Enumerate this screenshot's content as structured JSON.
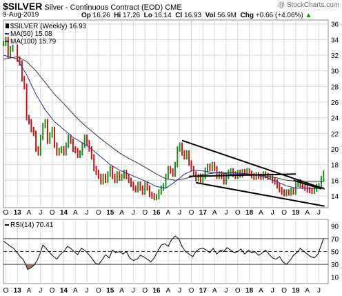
{
  "header": {
    "ticker": "$SILVER",
    "title_rest": "Silver - Continuous Contract (EOD)",
    "exchange": "CME",
    "brand": "@ StockCharts.com",
    "date": "9-Aug-2019",
    "op_label": "Op",
    "op_value": "16.26",
    "hi_label": "Hi",
    "hi_value": "17.26",
    "lo_label": "Lo",
    "lo_value": "16.14",
    "cl_label": "Cl",
    "cl_value": "16.93",
    "vol_label": "Vol",
    "vol_value": "56.9M",
    "chg_label": "Chg",
    "chg_value": "+0.66 (+4.06%)",
    "chg_arrow": "▲"
  },
  "colors": {
    "price_up": "#1a8c1a",
    "price_down": "#cc1111",
    "ma50": "#2b2b8c",
    "ma100": "#333333",
    "trendline": "#000000",
    "rsi_line": "#000000",
    "rsi_oversold_fill": "#b07070",
    "grid": "#d8d8d8"
  },
  "chart_data": [
    {
      "type": "line",
      "name": "price",
      "legend": [
        {
          "label": "$SILVER (Weekly) 16.93",
          "key": "price"
        },
        {
          "label": "MA(50) 15.08",
          "key": "ma50"
        },
        {
          "label": "MA(100) 15.79",
          "key": "ma100"
        }
      ],
      "y_ticks": [
        14,
        16,
        18,
        20,
        22,
        24,
        26,
        28,
        30,
        32,
        34,
        36
      ],
      "ylim": [
        12.5,
        36.5
      ],
      "x_labels": [
        "O",
        "13",
        "A",
        "J",
        "O",
        "14",
        "A",
        "J",
        "O",
        "15",
        "A",
        "J",
        "O",
        "16",
        "A",
        "J",
        "O",
        "17",
        "A",
        "J",
        "O",
        "18",
        "A",
        "J",
        "O",
        "19",
        "A",
        "J"
      ],
      "year_labels": [
        "13",
        "14",
        "15",
        "16",
        "17",
        "18",
        "19"
      ],
      "x_range": [
        2012.7,
        2019.7
      ],
      "price_series": {
        "x": [
          2012.7,
          2012.75,
          2012.8,
          2012.85,
          2012.9,
          2013.0,
          2013.05,
          2013.1,
          2013.15,
          2013.2,
          2013.25,
          2013.3,
          2013.35,
          2013.4,
          2013.45,
          2013.5,
          2013.55,
          2013.6,
          2013.65,
          2013.7,
          2013.75,
          2013.8,
          2013.85,
          2013.9,
          2013.95,
          2014.0,
          2014.05,
          2014.1,
          2014.15,
          2014.2,
          2014.25,
          2014.3,
          2014.35,
          2014.4,
          2014.45,
          2014.5,
          2014.55,
          2014.6,
          2014.65,
          2014.7,
          2014.75,
          2014.8,
          2014.85,
          2014.9,
          2014.95,
          2015.0,
          2015.05,
          2015.1,
          2015.15,
          2015.2,
          2015.25,
          2015.3,
          2015.35,
          2015.4,
          2015.45,
          2015.5,
          2015.55,
          2015.6,
          2015.65,
          2015.7,
          2015.75,
          2015.8,
          2015.85,
          2015.9,
          2015.95,
          2016.0,
          2016.05,
          2016.1,
          2016.15,
          2016.2,
          2016.25,
          2016.3,
          2016.35,
          2016.4,
          2016.45,
          2016.5,
          2016.55,
          2016.6,
          2016.65,
          2016.7,
          2016.75,
          2016.8,
          2016.85,
          2016.9,
          2016.95,
          2017.0,
          2017.05,
          2017.1,
          2017.15,
          2017.2,
          2017.25,
          2017.3,
          2017.35,
          2017.4,
          2017.45,
          2017.5,
          2017.55,
          2017.6,
          2017.65,
          2017.7,
          2017.75,
          2017.8,
          2017.85,
          2017.9,
          2017.95,
          2018.0,
          2018.05,
          2018.1,
          2018.15,
          2018.2,
          2018.25,
          2018.3,
          2018.35,
          2018.4,
          2018.45,
          2018.5,
          2018.55,
          2018.6,
          2018.65,
          2018.7,
          2018.75,
          2018.8,
          2018.85,
          2018.9,
          2018.95,
          2019.0,
          2019.05,
          2019.1,
          2019.15,
          2019.2,
          2019.25,
          2019.3,
          2019.35,
          2019.4,
          2019.45,
          2019.5,
          2019.55,
          2019.6
        ],
        "y": [
          33.5,
          34.0,
          32.0,
          32.8,
          33.0,
          31.5,
          31.0,
          29.0,
          28.0,
          24.0,
          23.5,
          22.5,
          22.0,
          20.0,
          19.5,
          21.5,
          23.0,
          23.5,
          21.0,
          21.8,
          22.5,
          20.5,
          19.5,
          19.8,
          20.0,
          19.5,
          20.5,
          21.5,
          21.0,
          20.0,
          19.8,
          19.2,
          19.5,
          20.5,
          21.5,
          20.8,
          20.0,
          19.0,
          17.5,
          17.0,
          16.5,
          15.8,
          16.5,
          16.0,
          16.8,
          17.5,
          16.5,
          16.0,
          16.8,
          16.3,
          16.5,
          17.0,
          16.5,
          16.0,
          15.5,
          15.0,
          14.8,
          15.5,
          15.0,
          14.5,
          15.5,
          15.0,
          14.2,
          14.0,
          13.8,
          13.9,
          14.5,
          15.0,
          15.3,
          16.5,
          17.5,
          17.2,
          16.8,
          18.0,
          20.0,
          20.5,
          19.5,
          19.0,
          19.5,
          18.2,
          17.5,
          16.8,
          16.2,
          16.5,
          16.0,
          16.5,
          17.3,
          17.8,
          17.5,
          18.0,
          17.5,
          16.5,
          16.8,
          16.5,
          15.8,
          16.5,
          17.0,
          17.2,
          16.8,
          16.5,
          17.0,
          16.7,
          17.1,
          17.0,
          17.2,
          16.9,
          16.6,
          16.4,
          16.7,
          16.5,
          16.4,
          16.8,
          16.6,
          16.4,
          16.5,
          16.0,
          15.8,
          15.3,
          14.8,
          14.5,
          14.3,
          14.5,
          14.4,
          14.7,
          14.5,
          15.5,
          15.8,
          15.4,
          15.2,
          15.0,
          14.8,
          14.7,
          14.6,
          14.9,
          15.2,
          15.3,
          16.2,
          16.93
        ]
      },
      "ma50": {
        "x": [
          2012.7,
          2013.0,
          2013.2,
          2013.4,
          2013.6,
          2013.8,
          2014.0,
          2014.2,
          2014.4,
          2014.6,
          2014.8,
          2015.0,
          2015.2,
          2015.4,
          2015.6,
          2015.8,
          2016.0,
          2016.2,
          2016.4,
          2016.6,
          2016.8,
          2017.0,
          2017.2,
          2017.4,
          2017.6,
          2017.8,
          2018.0,
          2018.2,
          2018.4,
          2018.6,
          2018.8,
          2019.0,
          2019.2,
          2019.4,
          2019.6
        ],
        "y": [
          32.0,
          31.5,
          29.5,
          27.0,
          25.0,
          23.5,
          22.5,
          21.5,
          20.8,
          20.0,
          19.0,
          18.0,
          17.3,
          16.8,
          16.3,
          15.8,
          15.2,
          15.0,
          15.8,
          16.8,
          17.3,
          17.2,
          17.0,
          16.9,
          16.8,
          16.8,
          16.7,
          16.6,
          16.3,
          15.8,
          15.3,
          15.0,
          15.0,
          14.9,
          15.1
        ]
      },
      "ma100": {
        "x": [
          2012.7,
          2013.0,
          2013.2,
          2013.4,
          2013.6,
          2013.8,
          2014.0,
          2014.2,
          2014.4,
          2014.6,
          2014.8,
          2015.0,
          2015.2,
          2015.4,
          2015.6,
          2015.8,
          2016.0,
          2016.2,
          2016.4,
          2016.6,
          2016.8,
          2017.0,
          2017.2,
          2017.4,
          2017.6,
          2017.8,
          2018.0,
          2018.2,
          2018.4,
          2018.6,
          2018.8,
          2019.0,
          2019.2,
          2019.4,
          2019.6
        ],
        "y": [
          31.5,
          31.8,
          31.2,
          30.0,
          28.5,
          27.0,
          25.8,
          24.5,
          23.3,
          22.3,
          21.3,
          20.4,
          19.5,
          18.8,
          18.2,
          17.5,
          16.8,
          16.2,
          16.0,
          16.2,
          16.5,
          16.7,
          16.9,
          17.0,
          17.0,
          16.9,
          16.8,
          16.7,
          16.5,
          16.3,
          16.0,
          15.9,
          15.8,
          15.8,
          15.8
        ]
      },
      "trendlines": [
        {
          "x": [
            2016.55,
            2019.62
          ],
          "y": [
            21.1,
            14.9
          ]
        },
        {
          "x": [
            2016.85,
            2019.62
          ],
          "y": [
            15.7,
            12.7
          ]
        },
        {
          "x": [
            2016.7,
            2019.0
          ],
          "y": [
            16.5,
            16.8
          ]
        },
        {
          "x": [
            2018.95,
            2019.55
          ],
          "y": [
            16.0,
            14.9
          ]
        }
      ]
    },
    {
      "type": "line",
      "name": "rsi",
      "legend": [
        {
          "label": "RSI(14) 70.41",
          "key": "rsi"
        }
      ],
      "y_ticks": [
        10,
        30,
        50,
        70,
        90
      ],
      "ylim": [
        0,
        100
      ],
      "reference_lines": [
        30,
        50,
        70
      ],
      "x_labels": [
        "O",
        "13",
        "A",
        "J",
        "O",
        "14",
        "A",
        "J",
        "O",
        "15",
        "A",
        "J",
        "O",
        "16",
        "A",
        "J",
        "O",
        "17",
        "A",
        "J",
        "O",
        "18",
        "A",
        "J",
        "O",
        "19",
        "A",
        "J"
      ],
      "year_labels": [
        "13",
        "14",
        "15",
        "16",
        "17",
        "18",
        "19"
      ],
      "x_range": [
        2012.7,
        2019.7
      ],
      "series": {
        "x": [
          2012.7,
          2012.78,
          2012.85,
          2012.92,
          2013.0,
          2013.06,
          2013.12,
          2013.18,
          2013.22,
          2013.28,
          2013.35,
          2013.42,
          2013.48,
          2013.55,
          2013.62,
          2013.7,
          2013.78,
          2013.85,
          2013.92,
          2014.0,
          2014.08,
          2014.15,
          2014.22,
          2014.3,
          2014.38,
          2014.45,
          2014.52,
          2014.6,
          2014.68,
          2014.75,
          2014.82,
          2014.9,
          2014.98,
          2015.05,
          2015.12,
          2015.2,
          2015.28,
          2015.35,
          2015.42,
          2015.5,
          2015.58,
          2015.65,
          2015.72,
          2015.8,
          2015.88,
          2015.95,
          2016.02,
          2016.1,
          2016.18,
          2016.25,
          2016.32,
          2016.4,
          2016.48,
          2016.55,
          2016.62,
          2016.7,
          2016.78,
          2016.85,
          2016.92,
          2017.0,
          2017.08,
          2017.15,
          2017.22,
          2017.3,
          2017.38,
          2017.45,
          2017.52,
          2017.6,
          2017.68,
          2017.75,
          2017.82,
          2017.9,
          2017.98,
          2018.05,
          2018.12,
          2018.2,
          2018.28,
          2018.35,
          2018.42,
          2018.5,
          2018.58,
          2018.65,
          2018.72,
          2018.8,
          2018.88,
          2018.95,
          2019.02,
          2019.1,
          2019.18,
          2019.25,
          2019.32,
          2019.4,
          2019.48,
          2019.55,
          2019.6
        ],
        "y": [
          66,
          62,
          58,
          55,
          48,
          42,
          38,
          30,
          22,
          24,
          28,
          35,
          45,
          60,
          55,
          48,
          42,
          38,
          45,
          50,
          58,
          55,
          50,
          45,
          55,
          52,
          47,
          40,
          32,
          30,
          36,
          45,
          40,
          52,
          48,
          50,
          46,
          50,
          40,
          36,
          38,
          44,
          42,
          38,
          34,
          40,
          50,
          60,
          62,
          58,
          68,
          74,
          70,
          58,
          50,
          46,
          42,
          50,
          54,
          55,
          52,
          48,
          55,
          46,
          52,
          50,
          56,
          52,
          48,
          50,
          54,
          46,
          52,
          48,
          50,
          44,
          48,
          52,
          46,
          40,
          38,
          42,
          34,
          30,
          36,
          44,
          48,
          55,
          50,
          46,
          42,
          40,
          46,
          60,
          70.41
        ]
      }
    }
  ]
}
